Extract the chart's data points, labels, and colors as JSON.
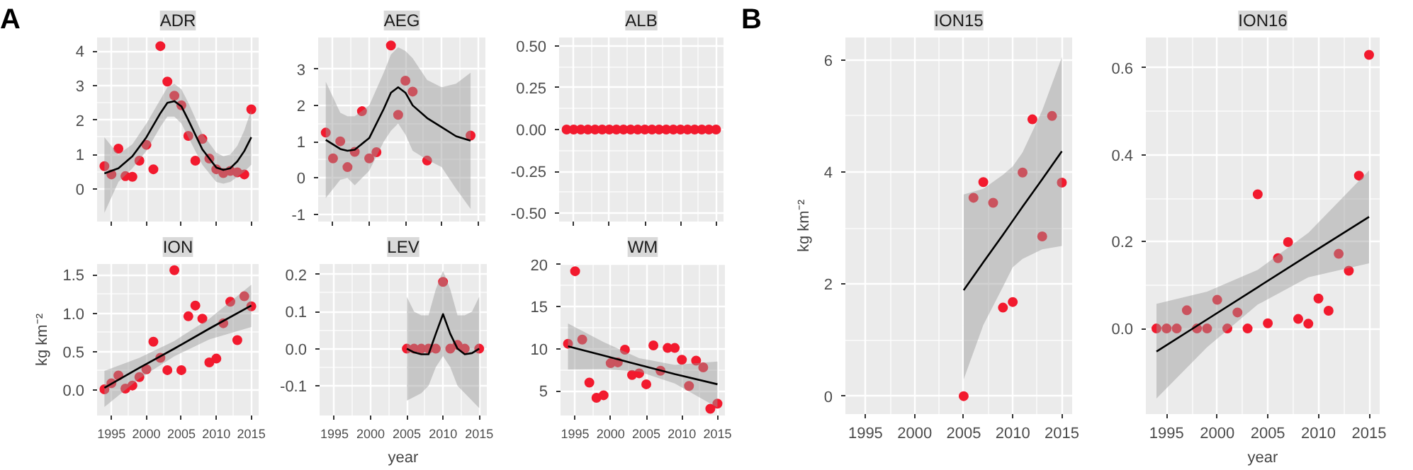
{
  "chart_data": [
    {
      "type": "scatter",
      "title": "ADR",
      "annotations": [
        "A"
      ],
      "tick_labels": "y",
      "grid": true,
      "xlim": [
        1992.95,
        2016.05
      ],
      "xticks": [
        1995,
        2000,
        2005,
        2010,
        2015
      ],
      "ylim": [
        -0.95,
        4.4
      ],
      "yticks": [
        0,
        1,
        2,
        3,
        4
      ],
      "series": [
        {
          "marker": "circle",
          "color": "#f21a2e",
          "x": [
            1994,
            1995,
            1996,
            1997,
            1998,
            1999,
            2000,
            2001,
            2002,
            2003,
            2004,
            2005,
            2006,
            2007,
            2008,
            2009,
            2010,
            2011,
            2012,
            2013,
            2014,
            2015
          ],
          "values": [
            0.66,
            0.42,
            1.17,
            0.37,
            0.35,
            0.82,
            1.28,
            0.57,
            4.15,
            3.12,
            2.71,
            2.43,
            1.54,
            0.82,
            1.45,
            0.88,
            0.57,
            0.46,
            0.52,
            0.48,
            0.42,
            2.31
          ]
        },
        {
          "type": "line",
          "line_style": "solid",
          "color": "#000000",
          "x": [
            1994,
            1996,
            1998,
            2000,
            2002,
            2003,
            2004,
            2005,
            2006,
            2008,
            2010,
            2011,
            2012,
            2013,
            2014,
            2015
          ],
          "values": [
            0.45,
            0.6,
            0.95,
            1.5,
            2.2,
            2.5,
            2.55,
            2.4,
            2.0,
            1.15,
            0.62,
            0.55,
            0.6,
            0.8,
            1.1,
            1.5
          ],
          "upper": [
            1.5,
            1.0,
            1.3,
            1.9,
            2.6,
            2.95,
            3.05,
            2.9,
            2.5,
            1.6,
            1.05,
            0.95,
            1.0,
            1.25,
            1.7,
            2.3
          ],
          "lower": [
            -0.7,
            0.2,
            0.6,
            1.1,
            1.8,
            2.1,
            2.1,
            1.9,
            1.5,
            0.7,
            0.2,
            0.15,
            0.2,
            0.35,
            0.5,
            0.7
          ]
        }
      ]
    },
    {
      "type": "scatter",
      "title": "AEG",
      "tick_labels": "y",
      "grid": true,
      "xlim": [
        1992.95,
        2016.05
      ],
      "xticks": [
        1995,
        2000,
        2005,
        2010,
        2015
      ],
      "ylim": [
        -1.2,
        3.87
      ],
      "yticks": [
        -1,
        0,
        1,
        2,
        3
      ],
      "series": [
        {
          "marker": "circle",
          "color": "#f21a2e",
          "x": [
            1994,
            1995,
            1996,
            1997,
            1998,
            1999,
            2000,
            2001,
            2003,
            2004,
            2005,
            2006,
            2008,
            2014
          ],
          "values": [
            1.25,
            0.54,
            1.01,
            0.3,
            0.72,
            1.84,
            0.54,
            0.71,
            3.65,
            1.74,
            2.68,
            2.38,
            0.48,
            1.17
          ]
        },
        {
          "type": "line",
          "line_style": "solid",
          "color": "#000000",
          "x": [
            1994,
            1996,
            1997,
            1998,
            2000,
            2002,
            2003,
            2004,
            2005,
            2006,
            2008,
            2010,
            2012,
            2014
          ],
          "values": [
            1.05,
            0.8,
            0.75,
            0.78,
            1.1,
            1.9,
            2.35,
            2.5,
            2.35,
            2.0,
            1.65,
            1.4,
            1.15,
            1.03
          ],
          "upper": [
            2.65,
            1.8,
            1.7,
            1.7,
            2.0,
            2.9,
            3.4,
            3.6,
            3.5,
            3.3,
            2.7,
            2.5,
            2.6,
            2.9
          ],
          "lower": [
            -0.55,
            -0.05,
            0.0,
            -0.2,
            0.2,
            1.0,
            1.3,
            1.5,
            1.2,
            0.75,
            0.5,
            0.3,
            -0.3,
            -0.85
          ]
        }
      ]
    },
    {
      "type": "scatter",
      "title": "ALB",
      "tick_labels": "y",
      "grid": true,
      "xlim": [
        1992.95,
        2016.05
      ],
      "xticks": [
        1995,
        2000,
        2005,
        2010,
        2015
      ],
      "ylim": [
        -0.55,
        0.55
      ],
      "yticks": [
        {
          "value": -0.5,
          "label": "-0.50"
        },
        {
          "value": -0.25,
          "label": "-0.25"
        },
        {
          "value": 0,
          "label": "0.00"
        },
        {
          "value": 0.25,
          "label": "0.25"
        },
        {
          "value": 0.5,
          "label": "0.50"
        }
      ],
      "series": [
        {
          "marker": "circle",
          "color": "#f21a2e",
          "x": [
            1994,
            1995,
            1996,
            1997,
            1998,
            1999,
            2000,
            2001,
            2002,
            2003,
            2004,
            2005,
            2006,
            2007,
            2008,
            2009,
            2010,
            2011,
            2012,
            2013,
            2014,
            2015
          ],
          "values": [
            0,
            0,
            0,
            0,
            0,
            0,
            0,
            0,
            0,
            0,
            0,
            0,
            0,
            0,
            0,
            0,
            0,
            0,
            0,
            0,
            0,
            0
          ]
        }
      ]
    },
    {
      "type": "scatter",
      "title": "ION",
      "ylabel": "kg km⁻²",
      "grid": true,
      "xlim": [
        1992.95,
        2016.05
      ],
      "xticks": [
        1995,
        2000,
        2005,
        2010,
        2015
      ],
      "ylim": [
        -0.33,
        1.64
      ],
      "yticks": [
        {
          "value": 0,
          "label": "0.0"
        },
        {
          "value": 0.5,
          "label": "0.5"
        },
        {
          "value": 1,
          "label": "1.0"
        },
        {
          "value": 1.5,
          "label": "1.5"
        }
      ],
      "series": [
        {
          "marker": "circle",
          "color": "#f21a2e",
          "x": [
            1994,
            1995,
            1996,
            1997,
            1998,
            1999,
            2000,
            2001,
            2002,
            2003,
            2004,
            2005,
            2006,
            2007,
            2008,
            2009,
            2010,
            2011,
            2012,
            2013,
            2014,
            2015
          ],
          "values": [
            0.01,
            0.09,
            0.19,
            0.02,
            0.06,
            0.17,
            0.27,
            0.63,
            0.42,
            0.26,
            1.56,
            0.26,
            0.96,
            1.1,
            0.93,
            0.36,
            0.41,
            0.87,
            1.15,
            0.65,
            1.22,
            1.09
          ]
        },
        {
          "type": "line",
          "line_style": "solid",
          "color": "#000000",
          "x": [
            1994,
            1999,
            2004,
            2009,
            2015
          ],
          "values": [
            0.03,
            0.29,
            0.54,
            0.8,
            1.1
          ],
          "upper": [
            0.25,
            0.42,
            0.64,
            0.93,
            1.37
          ],
          "lower": [
            -0.22,
            0.15,
            0.44,
            0.66,
            0.82
          ]
        }
      ]
    },
    {
      "type": "scatter",
      "title": "LEV",
      "xlabel": "year",
      "grid": true,
      "xlim": [
        1992.95,
        2016.05
      ],
      "xticks": [
        1995,
        2000,
        2005,
        2010,
        2015
      ],
      "ylim": [
        -0.18,
        0.228
      ],
      "yticks": [
        {
          "value": -0.1,
          "label": "-0.1"
        },
        {
          "value": 0,
          "label": "0.0"
        },
        {
          "value": 0.1,
          "label": "0.1"
        },
        {
          "value": 0.2,
          "label": "0.2"
        }
      ],
      "series": [
        {
          "marker": "circle",
          "color": "#f21a2e",
          "x": [
            2005,
            2006,
            2007,
            2008,
            2009,
            2010,
            2011,
            2012,
            2013,
            2015
          ],
          "values": [
            0,
            0,
            0,
            0,
            0,
            0.18,
            0,
            0.01,
            0,
            0
          ]
        },
        {
          "type": "line",
          "line_style": "solid",
          "color": "#000000",
          "x": [
            2005,
            2006,
            2007,
            2008,
            2009,
            2010,
            2011,
            2012,
            2013,
            2014,
            2015
          ],
          "values": [
            0.0,
            -0.01,
            -0.015,
            -0.015,
            0.04,
            0.093,
            0.04,
            0.0,
            -0.015,
            -0.012,
            0.0
          ],
          "upper": [
            0.14,
            0.1,
            0.09,
            0.09,
            0.16,
            0.21,
            0.16,
            0.09,
            0.09,
            0.1,
            0.14
          ],
          "lower": [
            -0.14,
            -0.13,
            -0.12,
            -0.1,
            -0.05,
            -0.02,
            -0.05,
            -0.1,
            -0.12,
            -0.14,
            -0.16
          ]
        }
      ]
    },
    {
      "type": "scatter",
      "title": "WM",
      "grid": true,
      "xlim": [
        1992.95,
        2016.05
      ],
      "xticks": [
        1995,
        2000,
        2005,
        2010,
        2015
      ],
      "ylim": [
        2.1,
        20.05
      ],
      "yticks": [
        5,
        10,
        15,
        20
      ],
      "series": [
        {
          "marker": "circle",
          "color": "#f21a2e",
          "x": [
            1994,
            1995,
            1996,
            1997,
            1998,
            1999,
            2000,
            2001,
            2002,
            2003,
            2004,
            2005,
            2006,
            2007,
            2008,
            2009,
            2010,
            2011,
            2012,
            2013,
            2014,
            2015
          ],
          "values": [
            10.6,
            19.2,
            11.1,
            6.0,
            4.2,
            4.5,
            8.3,
            8.4,
            9.9,
            6.9,
            7.1,
            5.8,
            10.4,
            7.4,
            10.1,
            10.1,
            8.7,
            5.6,
            8.6,
            7.8,
            2.9,
            3.5
          ]
        },
        {
          "type": "line",
          "line_style": "solid",
          "color": "#000000",
          "x": [
            1994,
            1999,
            2004,
            2009,
            2015
          ],
          "values": [
            10.3,
            9.2,
            8.1,
            7.0,
            5.8
          ],
          "upper": [
            13.0,
            10.8,
            8.9,
            8.1,
            8.5
          ],
          "lower": [
            7.55,
            7.6,
            7.3,
            5.9,
            3.05
          ]
        }
      ]
    },
    {
      "type": "scatter",
      "title": "ION15",
      "annotations": [
        "B"
      ],
      "ylabel": "kg km⁻²",
      "grid": true,
      "xlim": [
        1992.95,
        2016.05
      ],
      "xticks": [
        1995,
        2000,
        2005,
        2010,
        2015
      ],
      "ylim": [
        -0.32,
        6.4
      ],
      "yticks": [
        0,
        2,
        4,
        6
      ],
      "series": [
        {
          "marker": "circle",
          "color": "#f21a2e",
          "x": [
            2005,
            2006,
            2007,
            2008,
            2009,
            2010,
            2011,
            2012,
            2013,
            2014,
            2015
          ],
          "values": [
            0,
            3.54,
            3.82,
            3.45,
            1.58,
            1.68,
            3.99,
            4.94,
            2.85,
            5.0,
            3.81
          ]
        },
        {
          "type": "line",
          "line_style": "solid",
          "color": "#000000",
          "x": [
            2005,
            2007,
            2009,
            2010,
            2011,
            2013,
            2015
          ],
          "values": [
            1.89,
            2.39,
            2.88,
            3.13,
            3.38,
            3.87,
            4.37
          ],
          "upper": [
            3.6,
            3.7,
            3.95,
            4.1,
            4.35,
            5.1,
            6.05
          ],
          "lower": [
            0.3,
            1.27,
            1.95,
            2.3,
            2.45,
            2.62,
            2.68
          ]
        }
      ]
    },
    {
      "type": "scatter",
      "title": "ION16",
      "xlabel": "year",
      "grid": true,
      "xlim": [
        1992.95,
        2016.05
      ],
      "xticks": [
        1995,
        2000,
        2005,
        2010,
        2015
      ],
      "ylim": [
        -0.197,
        0.67
      ],
      "yticks": [
        {
          "value": 0,
          "label": "0.0"
        },
        {
          "value": 0.2,
          "label": "0.2"
        },
        {
          "value": 0.4,
          "label": "0.4"
        },
        {
          "value": 0.6,
          "label": "0.6"
        }
      ],
      "series": [
        {
          "marker": "circle",
          "color": "#f21a2e",
          "x": [
            1994,
            1995,
            1996,
            1997,
            1998,
            1999,
            2000,
            2001,
            2002,
            2003,
            2004,
            2005,
            2006,
            2007,
            2008,
            2009,
            2010,
            2011,
            2012,
            2013,
            2014,
            2015
          ],
          "values": [
            0,
            0,
            0,
            0.042,
            0,
            0,
            0.066,
            0,
            0.037,
            0,
            0.309,
            0.012,
            0.162,
            0.199,
            0.022,
            0.011,
            0.069,
            0.041,
            0.172,
            0.133,
            0.352,
            0.63
          ]
        },
        {
          "type": "line",
          "line_style": "solid",
          "color": "#000000",
          "x": [
            1994,
            1999,
            2004,
            2009,
            2015
          ],
          "values": [
            -0.053,
            0.021,
            0.095,
            0.169,
            0.257
          ],
          "upper": [
            0.057,
            0.085,
            0.135,
            0.22,
            0.364
          ],
          "lower": [
            -0.161,
            -0.043,
            0.055,
            0.118,
            0.15
          ]
        }
      ]
    }
  ]
}
